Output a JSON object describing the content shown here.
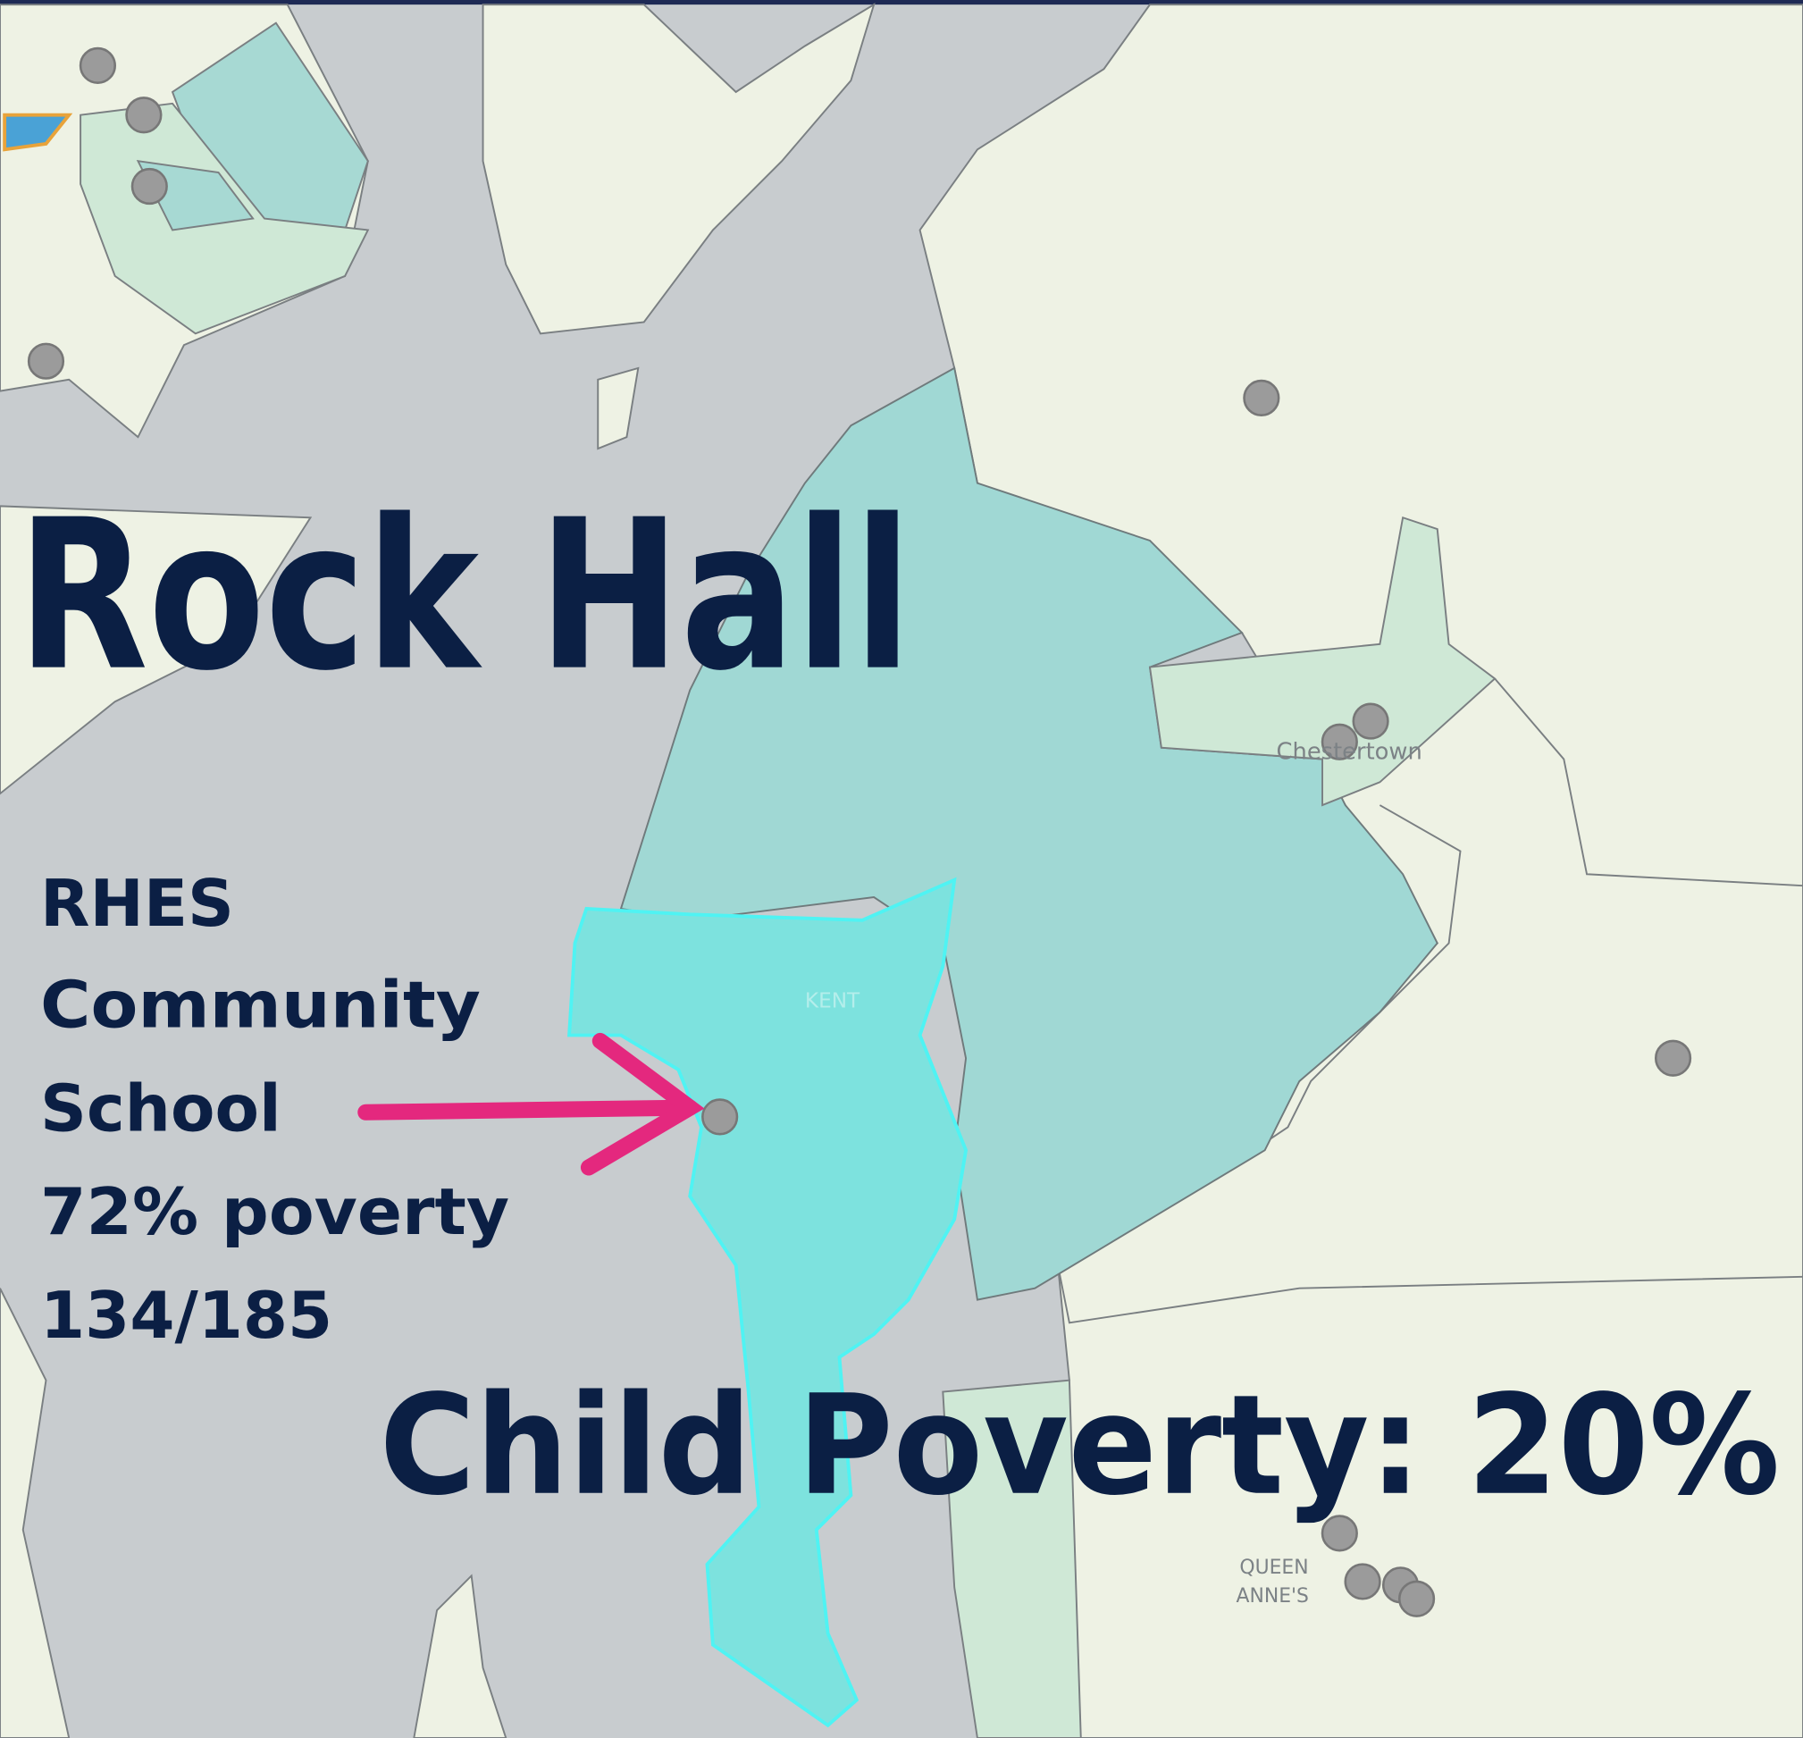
{
  "title": "Rock Hall",
  "school": {
    "lines": [
      "RHES",
      "Community",
      "School",
      "72% poverty",
      "134/185"
    ]
  },
  "headline": "Child Poverty: 20%",
  "map_labels": {
    "town": "Chestertown",
    "county": "KENT",
    "county_south": [
      "QUEEN",
      "ANNE'S"
    ]
  }
}
